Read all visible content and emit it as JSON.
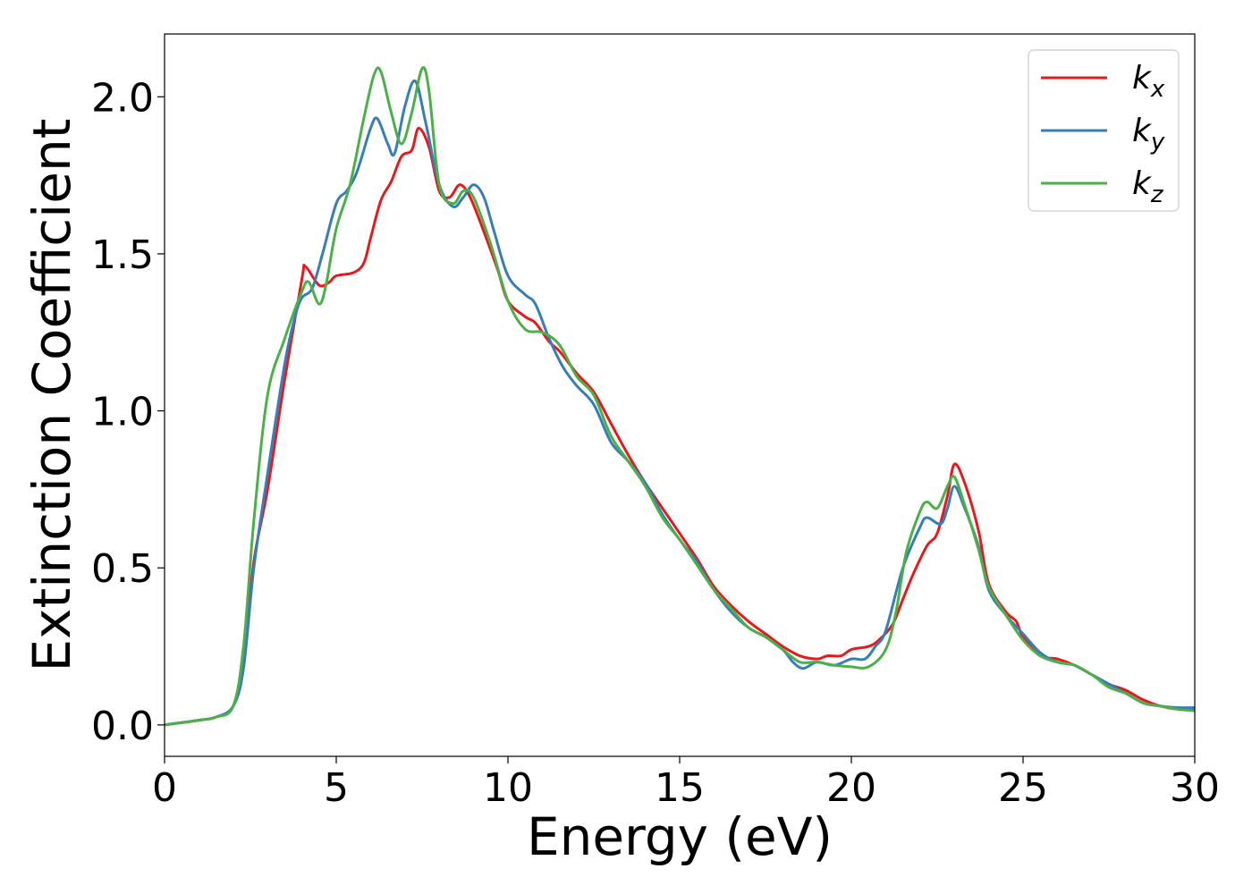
{
  "chart_data": {
    "type": "line",
    "title": "",
    "xlabel": "Energy (eV)",
    "ylabel": "Extinction Coefficient",
    "xlim": [
      0,
      30
    ],
    "ylim": [
      -0.1,
      2.2
    ],
    "xticks": [
      0,
      5,
      10,
      15,
      20,
      25,
      30
    ],
    "xtick_labels": [
      "0",
      "5",
      "10",
      "15",
      "20",
      "25",
      "30"
    ],
    "yticks": [
      0.0,
      0.5,
      1.0,
      1.5,
      2.0
    ],
    "ytick_labels": [
      "0.0",
      "0.5",
      "1.0",
      "1.5",
      "2.0"
    ],
    "grid": false,
    "legend_position": "top-right",
    "legend": [
      {
        "base": "k",
        "sub": "x"
      },
      {
        "base": "k",
        "sub": "y"
      },
      {
        "base": "k",
        "sub": "z"
      }
    ],
    "series": [
      {
        "name": "kx",
        "color": "#e41a1c",
        "points": [
          [
            0,
            0
          ],
          [
            1,
            0.015
          ],
          [
            1.5,
            0.025
          ],
          [
            2,
            0.06
          ],
          [
            2.3,
            0.2
          ],
          [
            2.6,
            0.52
          ],
          [
            3,
            0.75
          ],
          [
            3.5,
            1.1
          ],
          [
            4,
            1.42
          ],
          [
            4.1,
            1.46
          ],
          [
            4.5,
            1.4
          ],
          [
            4.8,
            1.41
          ],
          [
            5,
            1.43
          ],
          [
            5.5,
            1.44
          ],
          [
            5.8,
            1.47
          ],
          [
            6,
            1.55
          ],
          [
            6.3,
            1.67
          ],
          [
            6.6,
            1.73
          ],
          [
            6.9,
            1.81
          ],
          [
            7.2,
            1.83
          ],
          [
            7.4,
            1.9
          ],
          [
            7.7,
            1.84
          ],
          [
            8,
            1.7
          ],
          [
            8.3,
            1.68
          ],
          [
            8.6,
            1.72
          ],
          [
            8.9,
            1.68
          ],
          [
            9.3,
            1.57
          ],
          [
            9.7,
            1.45
          ],
          [
            10,
            1.35
          ],
          [
            10.5,
            1.3
          ],
          [
            10.8,
            1.28
          ],
          [
            11.2,
            1.22
          ],
          [
            11.5,
            1.19
          ],
          [
            12,
            1.12
          ],
          [
            12.5,
            1.06
          ],
          [
            13,
            0.96
          ],
          [
            13.5,
            0.86
          ],
          [
            14,
            0.77
          ],
          [
            14.5,
            0.69
          ],
          [
            15,
            0.61
          ],
          [
            15.5,
            0.53
          ],
          [
            16,
            0.44
          ],
          [
            16.5,
            0.38
          ],
          [
            17,
            0.33
          ],
          [
            17.5,
            0.29
          ],
          [
            18,
            0.25
          ],
          [
            18.5,
            0.22
          ],
          [
            19,
            0.21
          ],
          [
            19.3,
            0.22
          ],
          [
            19.7,
            0.22
          ],
          [
            20,
            0.24
          ],
          [
            20.5,
            0.25
          ],
          [
            20.8,
            0.27
          ],
          [
            21.2,
            0.32
          ],
          [
            21.5,
            0.4
          ],
          [
            21.8,
            0.48
          ],
          [
            22.2,
            0.57
          ],
          [
            22.5,
            0.61
          ],
          [
            22.8,
            0.73
          ],
          [
            23,
            0.83
          ],
          [
            23.3,
            0.77
          ],
          [
            23.7,
            0.62
          ],
          [
            24,
            0.45
          ],
          [
            24.5,
            0.36
          ],
          [
            24.8,
            0.33
          ],
          [
            25,
            0.28
          ],
          [
            25.5,
            0.22
          ],
          [
            26,
            0.21
          ],
          [
            26.5,
            0.19
          ],
          [
            27,
            0.16
          ],
          [
            27.5,
            0.13
          ],
          [
            28,
            0.11
          ],
          [
            28.5,
            0.08
          ],
          [
            29,
            0.06
          ],
          [
            29.5,
            0.05
          ],
          [
            30,
            0.05
          ]
        ]
      },
      {
        "name": "ky",
        "color": "#377eb8",
        "points": [
          [
            0,
            0
          ],
          [
            1,
            0.015
          ],
          [
            1.5,
            0.025
          ],
          [
            2,
            0.06
          ],
          [
            2.3,
            0.18
          ],
          [
            2.6,
            0.5
          ],
          [
            3,
            0.8
          ],
          [
            3.5,
            1.15
          ],
          [
            3.8,
            1.3
          ],
          [
            4,
            1.36
          ],
          [
            4.3,
            1.39
          ],
          [
            4.6,
            1.5
          ],
          [
            5,
            1.66
          ],
          [
            5.3,
            1.7
          ],
          [
            5.6,
            1.76
          ],
          [
            6,
            1.9
          ],
          [
            6.2,
            1.93
          ],
          [
            6.5,
            1.85
          ],
          [
            6.7,
            1.82
          ],
          [
            7,
            1.97
          ],
          [
            7.3,
            2.05
          ],
          [
            7.6,
            1.92
          ],
          [
            8,
            1.72
          ],
          [
            8.4,
            1.65
          ],
          [
            8.7,
            1.68
          ],
          [
            9,
            1.72
          ],
          [
            9.3,
            1.68
          ],
          [
            9.6,
            1.57
          ],
          [
            10,
            1.43
          ],
          [
            10.5,
            1.37
          ],
          [
            10.8,
            1.34
          ],
          [
            11.2,
            1.23
          ],
          [
            11.6,
            1.14
          ],
          [
            12,
            1.08
          ],
          [
            12.5,
            1.02
          ],
          [
            13,
            0.9
          ],
          [
            13.5,
            0.84
          ],
          [
            14,
            0.77
          ],
          [
            14.5,
            0.67
          ],
          [
            15,
            0.59
          ],
          [
            15.5,
            0.52
          ],
          [
            16,
            0.43
          ],
          [
            16.5,
            0.36
          ],
          [
            17,
            0.31
          ],
          [
            17.5,
            0.28
          ],
          [
            18,
            0.24
          ],
          [
            18.3,
            0.2
          ],
          [
            18.6,
            0.18
          ],
          [
            19,
            0.2
          ],
          [
            19.5,
            0.19
          ],
          [
            20,
            0.21
          ],
          [
            20.4,
            0.21
          ],
          [
            20.7,
            0.25
          ],
          [
            21,
            0.3
          ],
          [
            21.5,
            0.5
          ],
          [
            22,
            0.63
          ],
          [
            22.2,
            0.66
          ],
          [
            22.6,
            0.64
          ],
          [
            22.8,
            0.69
          ],
          [
            23,
            0.76
          ],
          [
            23.3,
            0.69
          ],
          [
            23.7,
            0.57
          ],
          [
            24,
            0.43
          ],
          [
            24.5,
            0.35
          ],
          [
            25,
            0.29
          ],
          [
            25.5,
            0.23
          ],
          [
            26,
            0.2
          ],
          [
            26.5,
            0.19
          ],
          [
            27,
            0.16
          ],
          [
            27.5,
            0.13
          ],
          [
            28,
            0.1
          ],
          [
            28.5,
            0.07
          ],
          [
            29,
            0.06
          ],
          [
            29.5,
            0.055
          ],
          [
            30,
            0.055
          ]
        ]
      },
      {
        "name": "kz",
        "color": "#4daf4a",
        "points": [
          [
            0,
            0
          ],
          [
            1,
            0.015
          ],
          [
            1.5,
            0.025
          ],
          [
            2,
            0.06
          ],
          [
            2.3,
            0.25
          ],
          [
            2.6,
            0.65
          ],
          [
            3,
            1.05
          ],
          [
            3.5,
            1.23
          ],
          [
            4,
            1.38
          ],
          [
            4.2,
            1.41
          ],
          [
            4.5,
            1.34
          ],
          [
            4.7,
            1.4
          ],
          [
            5,
            1.58
          ],
          [
            5.4,
            1.72
          ],
          [
            5.8,
            1.93
          ],
          [
            6.1,
            2.07
          ],
          [
            6.3,
            2.08
          ],
          [
            6.6,
            1.95
          ],
          [
            6.9,
            1.85
          ],
          [
            7.2,
            1.95
          ],
          [
            7.5,
            2.09
          ],
          [
            7.7,
            2.02
          ],
          [
            8,
            1.72
          ],
          [
            8.4,
            1.66
          ],
          [
            8.7,
            1.7
          ],
          [
            9,
            1.68
          ],
          [
            9.5,
            1.53
          ],
          [
            10,
            1.35
          ],
          [
            10.5,
            1.26
          ],
          [
            11,
            1.25
          ],
          [
            11.5,
            1.21
          ],
          [
            12,
            1.11
          ],
          [
            12.5,
            1.05
          ],
          [
            13,
            0.92
          ],
          [
            13.5,
            0.84
          ],
          [
            14,
            0.76
          ],
          [
            14.5,
            0.66
          ],
          [
            15,
            0.59
          ],
          [
            15.5,
            0.51
          ],
          [
            16,
            0.43
          ],
          [
            16.5,
            0.37
          ],
          [
            17,
            0.31
          ],
          [
            17.5,
            0.28
          ],
          [
            18,
            0.24
          ],
          [
            18.5,
            0.2
          ],
          [
            19,
            0.2
          ],
          [
            19.5,
            0.19
          ],
          [
            20,
            0.185
          ],
          [
            20.5,
            0.185
          ],
          [
            21,
            0.24
          ],
          [
            21.3,
            0.36
          ],
          [
            21.6,
            0.55
          ],
          [
            22,
            0.68
          ],
          [
            22.2,
            0.71
          ],
          [
            22.5,
            0.69
          ],
          [
            22.8,
            0.76
          ],
          [
            23,
            0.79
          ],
          [
            23.3,
            0.7
          ],
          [
            23.7,
            0.56
          ],
          [
            24,
            0.44
          ],
          [
            24.5,
            0.35
          ],
          [
            25,
            0.27
          ],
          [
            25.5,
            0.22
          ],
          [
            26,
            0.2
          ],
          [
            26.5,
            0.19
          ],
          [
            27,
            0.16
          ],
          [
            27.5,
            0.12
          ],
          [
            28,
            0.1
          ],
          [
            28.5,
            0.07
          ],
          [
            29,
            0.06
          ],
          [
            29.5,
            0.05
          ],
          [
            30,
            0.045
          ]
        ]
      }
    ]
  }
}
